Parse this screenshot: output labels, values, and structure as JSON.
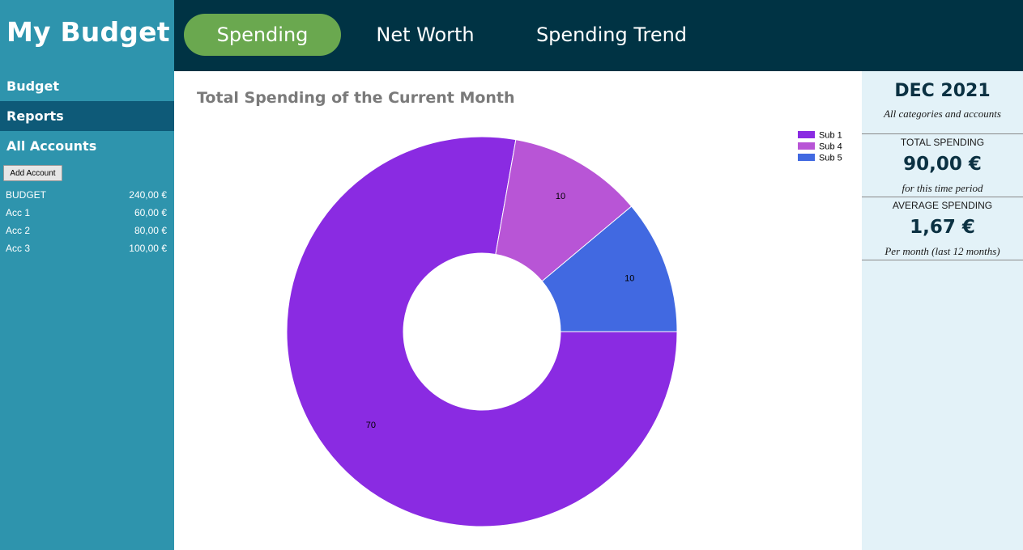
{
  "app": {
    "title": "My Budget"
  },
  "sidebar": {
    "nav": [
      {
        "label": "Budget"
      },
      {
        "label": "Reports"
      },
      {
        "label": "All Accounts"
      }
    ],
    "add_account_label": "Add Account",
    "accounts": [
      {
        "name": "BUDGET",
        "amount": "240,00 €"
      },
      {
        "name": "Acc 1",
        "amount": "60,00 €"
      },
      {
        "name": "Acc 2",
        "amount": "80,00 €"
      },
      {
        "name": "Acc 3",
        "amount": "100,00 €"
      }
    ]
  },
  "tabs": [
    {
      "label": "Spending",
      "active": true
    },
    {
      "label": "Net Worth"
    },
    {
      "label": "Spending Trend"
    }
  ],
  "summary": {
    "month": "DEC 2021",
    "scope": "All categories and accounts",
    "total_label": "TOTAL SPENDING",
    "total_value": "90,00 €",
    "total_note": "for this time period",
    "avg_label": "AVERAGE SPENDING",
    "avg_value": "1,67 €",
    "avg_note": "Per month (last 12 months)"
  },
  "colors": {
    "sidebar": "#2e94ad",
    "topbar": "#003344",
    "active_tab": "#6aa84f",
    "reports_highlight": "#0e5a78"
  },
  "chart_data": {
    "type": "pie",
    "donut": true,
    "title": "Total Spending of the Current Month",
    "categories": [
      "Sub 1",
      "Sub 4",
      "Sub 5"
    ],
    "values": [
      70,
      10,
      10
    ],
    "colors": [
      "#8a2be2",
      "#b855d6",
      "#4169e1"
    ],
    "legend": "top-right"
  }
}
